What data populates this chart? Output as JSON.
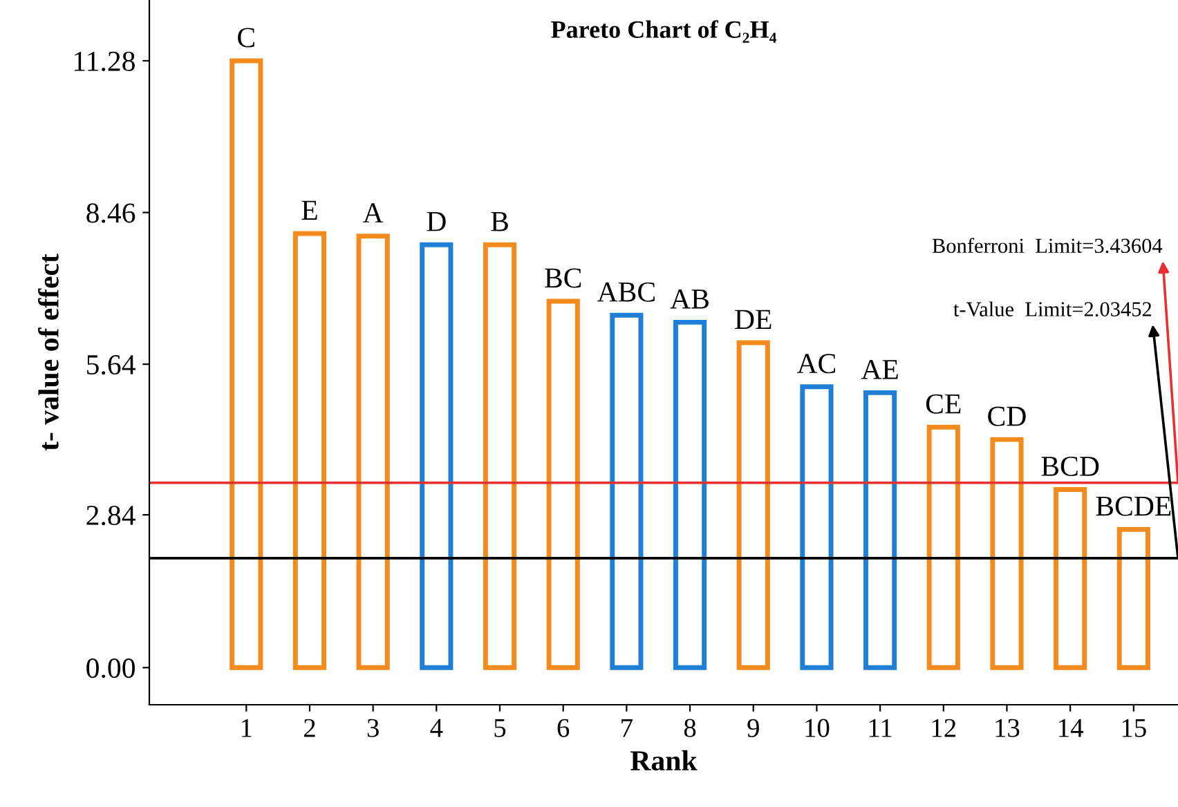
{
  "chart_data": {
    "type": "bar",
    "title": "Pareto Chart of C₂H₄",
    "xlabel": "Rank",
    "ylabel": "t- value of effect",
    "categories": [
      "1",
      "2",
      "3",
      "4",
      "5",
      "6",
      "7",
      "8",
      "9",
      "10",
      "11",
      "12",
      "13",
      "14",
      "15"
    ],
    "values": [
      11.28,
      8.07,
      8.02,
      7.86,
      7.86,
      6.81,
      6.55,
      6.42,
      6.04,
      5.22,
      5.11,
      4.47,
      4.24,
      3.31,
      2.57
    ],
    "colors": [
      "#f28a1e",
      "#f28a1e",
      "#f28a1e",
      "#1f7fd6",
      "#f28a1e",
      "#f28a1e",
      "#1f7fd6",
      "#1f7fd6",
      "#f28a1e",
      "#1f7fd6",
      "#1f7fd6",
      "#f28a1e",
      "#f28a1e",
      "#f28a1e",
      "#f28a1e"
    ],
    "ylim": [
      -0.69,
      12.41
    ],
    "yticks": [
      {
        "value": 0,
        "label": "0.00"
      },
      2.84,
      5.64,
      8.46,
      11.28
    ],
    "annotations": [
      {
        "text": "C",
        "x": "1",
        "y": 11.28
      },
      {
        "text": "E",
        "x": "2",
        "y": 8.07
      },
      {
        "text": "A",
        "x": "3",
        "y": 8.02
      },
      {
        "text": "D",
        "x": "4",
        "y": 7.86
      },
      {
        "text": "B",
        "x": "5",
        "y": 7.86
      },
      {
        "text": "BC",
        "x": "6",
        "y": 6.81
      },
      {
        "text": "ABC",
        "x": "7",
        "y": 6.55
      },
      {
        "text": "AB",
        "x": "8",
        "y": 6.42
      },
      {
        "text": "DE",
        "x": "9",
        "y": 6.04
      },
      {
        "text": "AC",
        "x": "10",
        "y": 5.22
      },
      {
        "text": "AE",
        "x": "11",
        "y": 5.11
      },
      {
        "text": "CE",
        "x": "12",
        "y": 4.47
      },
      {
        "text": "CD",
        "x": "13",
        "y": 4.24
      },
      {
        "text": "BCD",
        "x": "14",
        "y": 3.31
      },
      {
        "text": "BCDE",
        "x": "15",
        "y": 2.57
      }
    ],
    "ref_lines": [
      {
        "axis": "y",
        "value": 3.43604,
        "label": "Bonferroni  Limit=3.43604",
        "color": "#e8312f",
        "line_style": "solid"
      },
      {
        "axis": "y",
        "value": 2.03452,
        "label": "t-Value  Limit=2.03452",
        "color": "#000000",
        "line_style": "solid"
      }
    ],
    "grid": false,
    "legend": false
  }
}
